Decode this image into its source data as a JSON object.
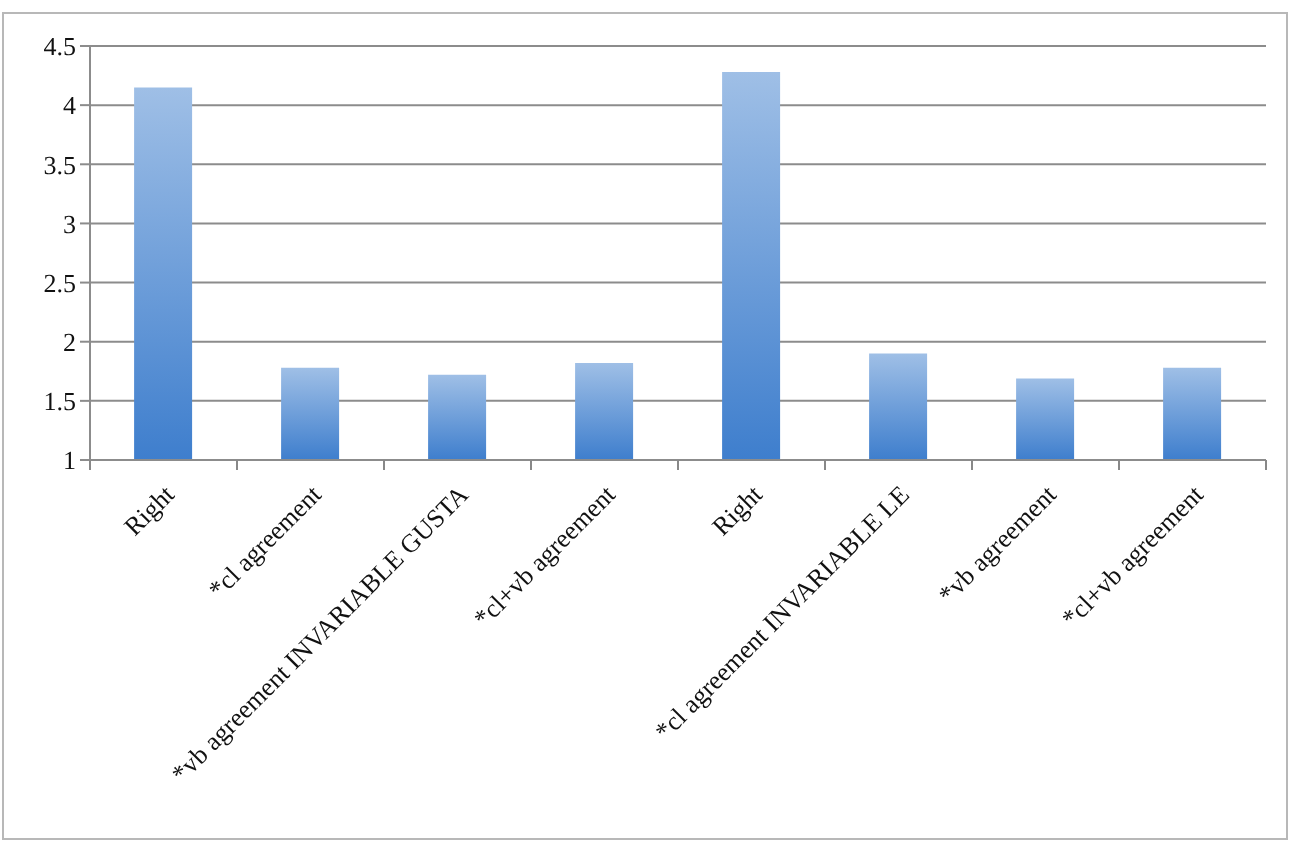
{
  "chart_data": {
    "type": "bar",
    "categories": [
      "Right",
      "*cl agreement",
      "*vb agreement INVARIABLE GUSTA",
      "*cl+vb agreement",
      "Right",
      "*cl agreement INVARIABLE LE",
      "*vb agreement",
      "*cl+vb agreement"
    ],
    "values": [
      4.15,
      1.78,
      1.72,
      1.82,
      4.28,
      1.9,
      1.69,
      1.78
    ],
    "color": "#3e7ecd",
    "ylim": [
      1,
      4.5
    ],
    "yticks": [
      1,
      1.5,
      2,
      2.5,
      3,
      3.5,
      4,
      4.5
    ],
    "grid": "y"
  }
}
